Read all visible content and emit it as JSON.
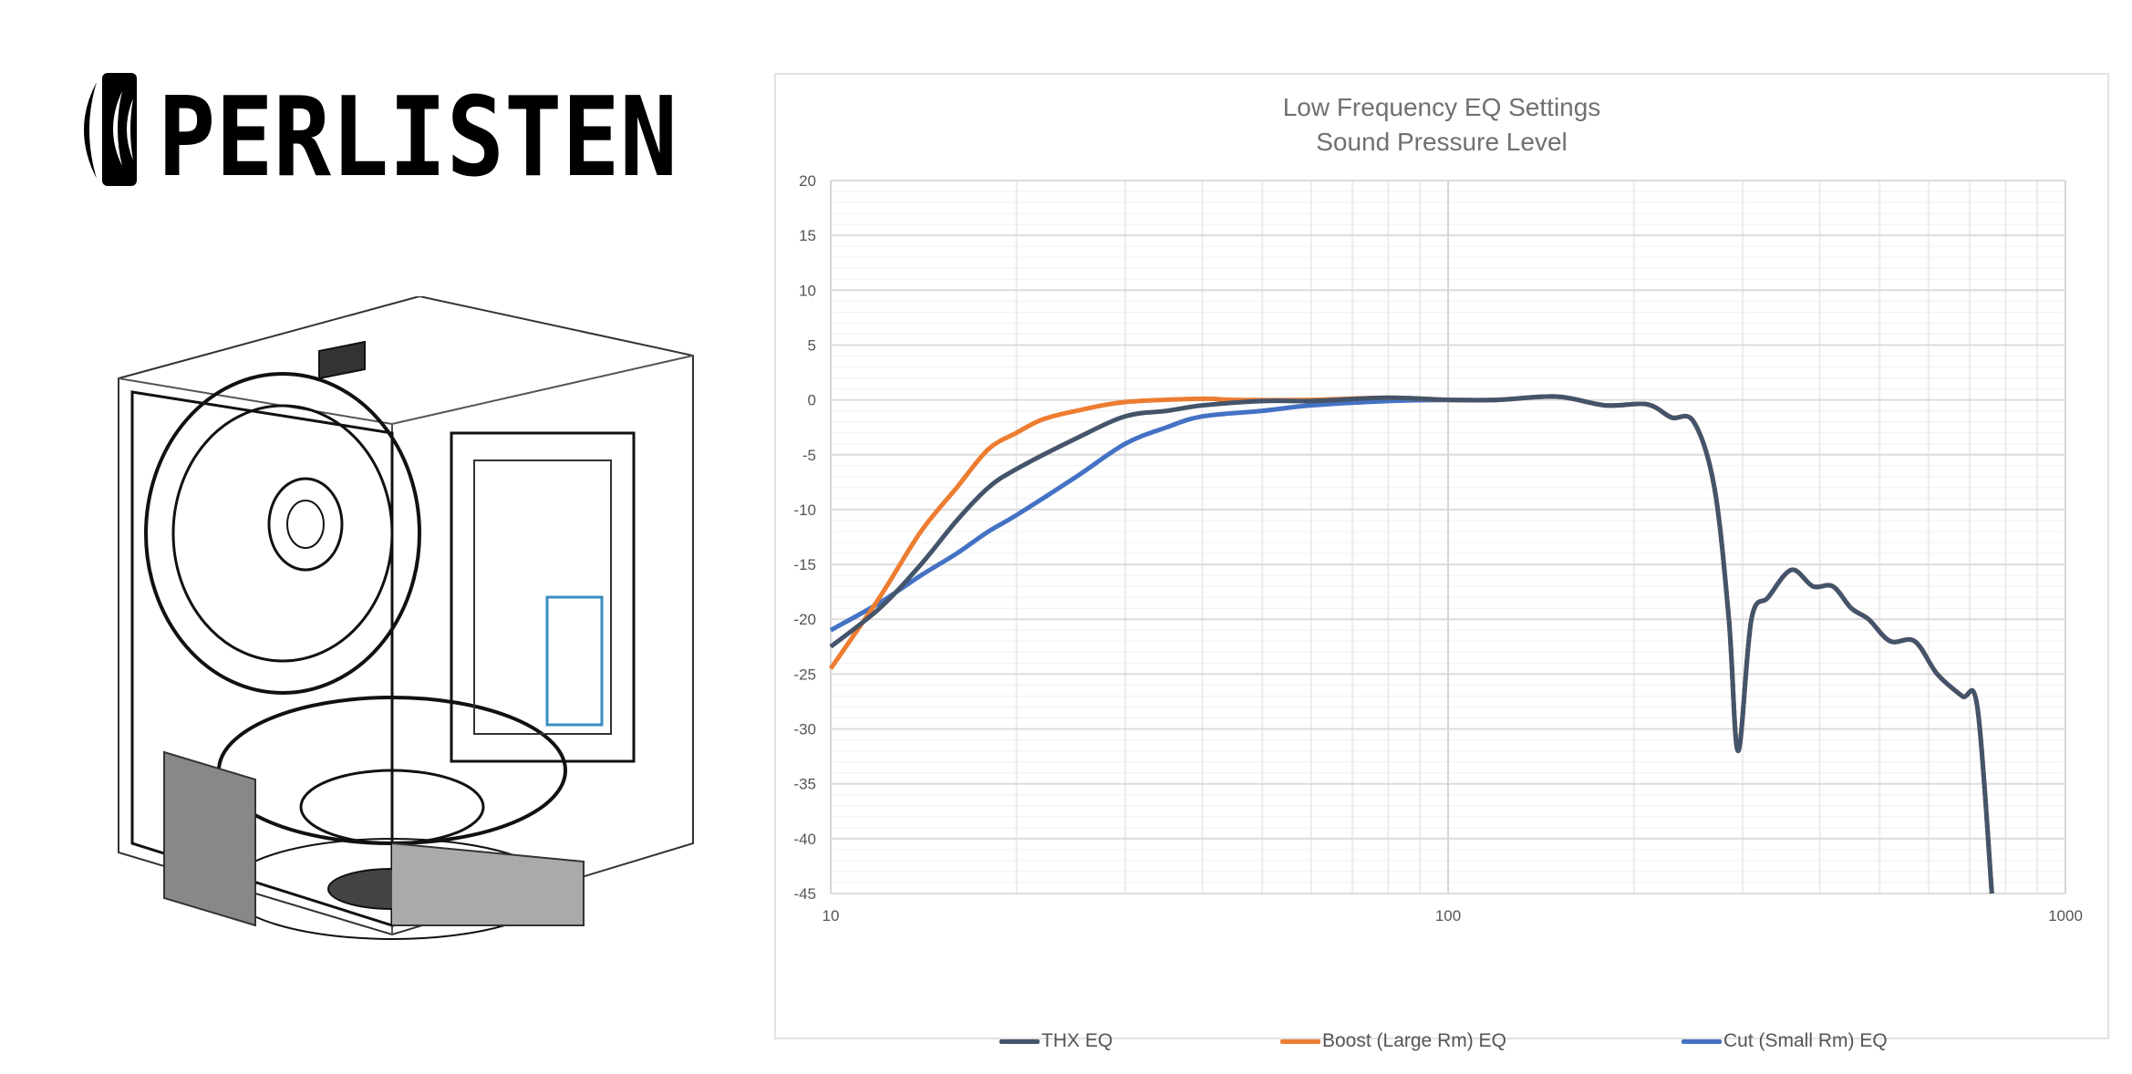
{
  "logo": {
    "text": "PERLISTEN"
  },
  "chart_data": {
    "type": "line",
    "title": "Low Frequency EQ Settings",
    "subtitle": "Sound Pressure Level",
    "xlabel": "",
    "ylabel": "",
    "xscale": "log",
    "xlim": [
      10,
      1000
    ],
    "ylim": [
      -45,
      20
    ],
    "x_ticks": [
      "10",
      "100",
      "1000"
    ],
    "y_ticks": [
      "20",
      "15",
      "10",
      "5",
      "0",
      "-5",
      "-10",
      "-15",
      "-20",
      "-25",
      "-30",
      "-35",
      "-40",
      "-45"
    ],
    "grid": true,
    "legend": "bottom",
    "series": [
      {
        "name": "THX EQ",
        "color": "#44546a",
        "x": [
          10,
          12,
          14,
          16,
          18,
          20,
          25,
          30,
          35,
          40,
          50,
          60,
          80,
          100,
          120,
          150,
          180,
          210,
          230,
          250,
          270,
          285,
          295,
          310,
          330,
          360,
          390,
          420,
          450,
          480,
          520,
          570,
          620,
          680,
          720,
          760
        ],
        "y": [
          -22.5,
          -19,
          -15,
          -11,
          -8,
          -6.3,
          -3.5,
          -1.5,
          -1,
          -0.5,
          -0.1,
          -0.1,
          0.2,
          0,
          0,
          0.3,
          -0.5,
          -0.4,
          -1.6,
          -2,
          -8,
          -20,
          -32,
          -20,
          -18,
          -15.5,
          -17,
          -17,
          -19,
          -20,
          -22,
          -22,
          -25,
          -27,
          -28,
          -45
        ]
      },
      {
        "name": "Boost (Large Rm) EQ",
        "color": "#ed7d31",
        "x": [
          10,
          12,
          14,
          16,
          18,
          20,
          22,
          25,
          30,
          40,
          45,
          60,
          80,
          100,
          120,
          150,
          180,
          210,
          230,
          250,
          270,
          285,
          295,
          310,
          330,
          360,
          390,
          420,
          450,
          480,
          520,
          570,
          620,
          680,
          720,
          760
        ],
        "y": [
          -24.5,
          -18,
          -12,
          -8,
          -4.5,
          -3,
          -1.8,
          -1,
          -0.2,
          0.1,
          0,
          0,
          0.2,
          0,
          0,
          0.3,
          -0.5,
          -0.4,
          -1.6,
          -2,
          -8,
          -20,
          -32,
          -20,
          -18,
          -15.5,
          -17,
          -17,
          -19,
          -20,
          -22,
          -22,
          -25,
          -27,
          -28,
          -45
        ]
      },
      {
        "name": "Cut (Small Rm) EQ",
        "color": "#4472c4",
        "x": [
          10,
          12,
          14,
          16,
          18,
          20,
          25,
          30,
          35,
          40,
          50,
          60,
          80,
          100,
          120,
          150,
          180,
          210,
          230,
          250,
          270,
          285,
          295,
          310,
          330,
          360,
          390,
          420,
          450,
          480,
          520,
          570,
          620,
          680,
          720,
          760
        ],
        "y": [
          -21,
          -18.5,
          -16,
          -14,
          -12,
          -10.5,
          -7,
          -4,
          -2.5,
          -1.5,
          -1,
          -0.5,
          -0.1,
          0,
          0,
          0.3,
          -0.5,
          -0.4,
          -1.6,
          -2,
          -8,
          -20,
          -32,
          -20,
          -18,
          -15.5,
          -17,
          -17,
          -19,
          -20,
          -22,
          -22,
          -25,
          -27,
          -28,
          -45
        ]
      }
    ]
  }
}
